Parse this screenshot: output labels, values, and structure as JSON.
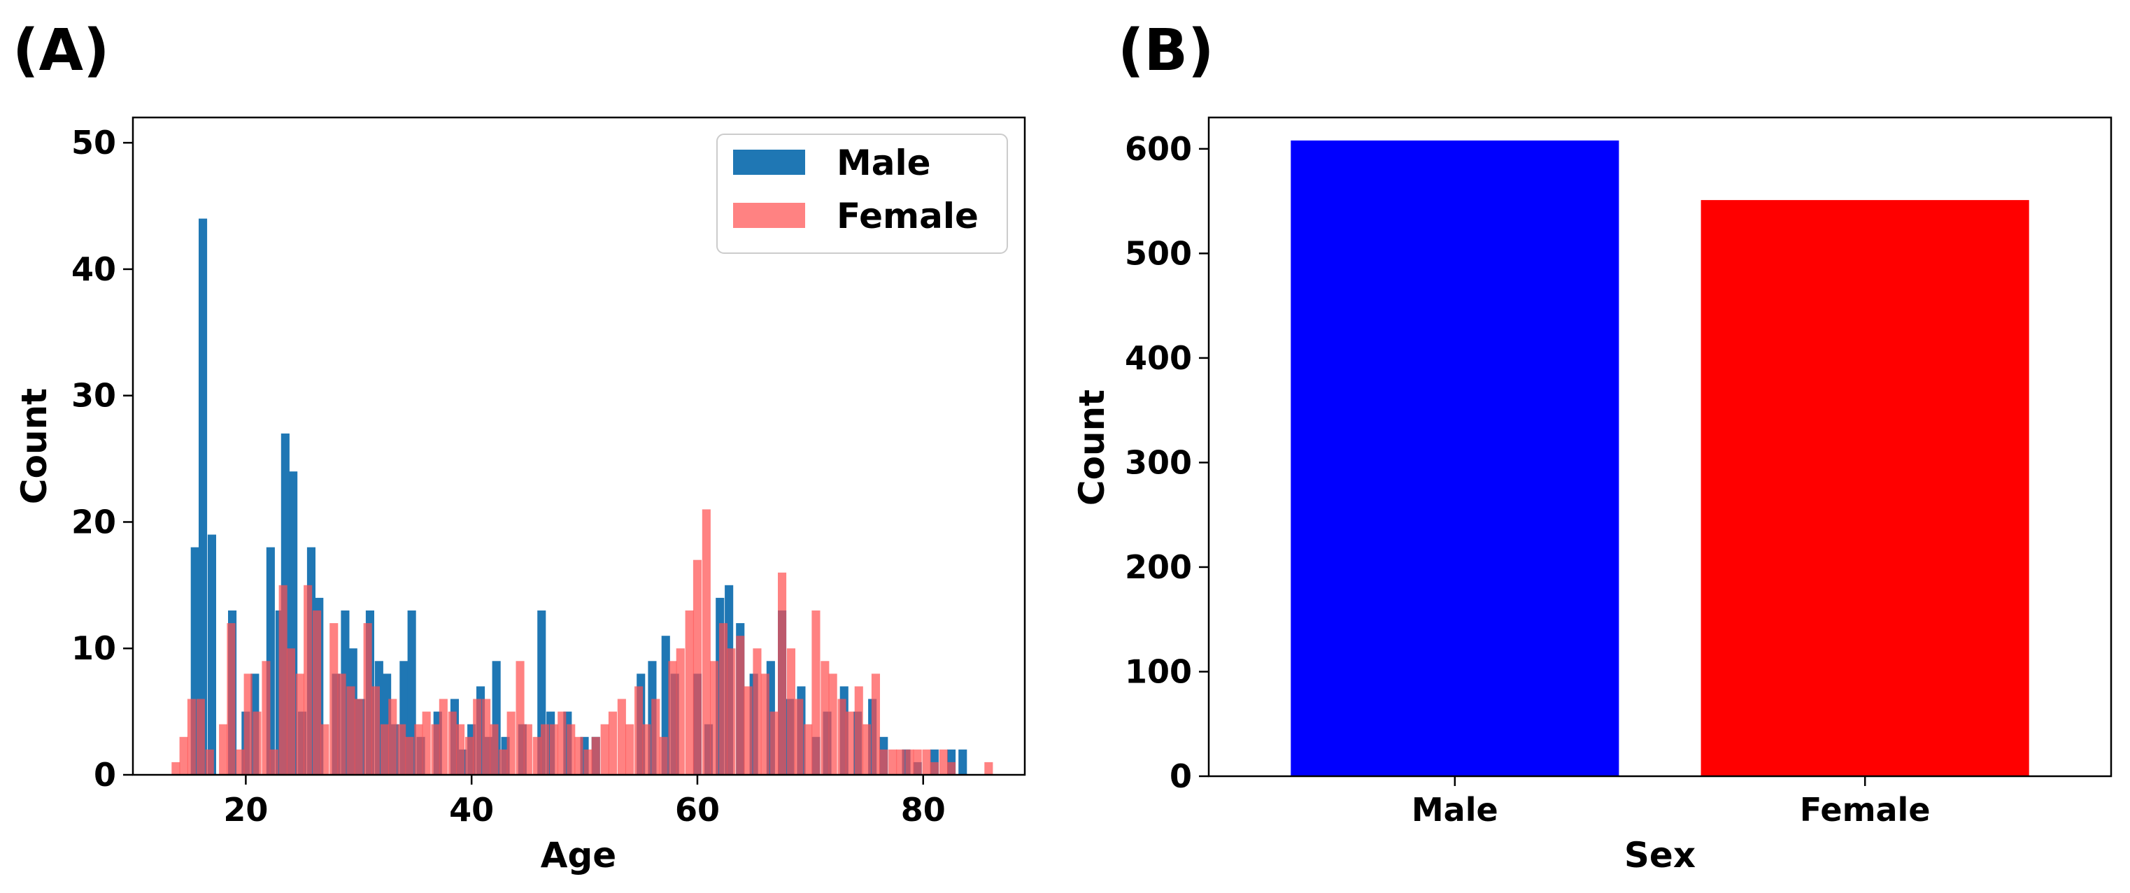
{
  "panels": [
    {
      "label": "(A)",
      "chart_data": {
        "type": "bar",
        "subtype": "overlapping-histogram",
        "title": "",
        "xlabel": "Age",
        "ylabel": "Count",
        "xlim": [
          10,
          89
        ],
        "ylim": [
          0,
          52
        ],
        "xticks": [
          20,
          40,
          60,
          80
        ],
        "yticks": [
          0,
          10,
          20,
          30,
          40,
          50
        ],
        "bin_width": 0.75,
        "legend": {
          "placement": "top-right"
        },
        "series": [
          {
            "name": "Male",
            "color": "#1f77b4",
            "opacity": 1.0,
            "bins": [
              [
                15.5,
                18
              ],
              [
                16.2,
                44
              ],
              [
                17.0,
                19
              ],
              [
                18.8,
                13
              ],
              [
                20.0,
                5
              ],
              [
                20.8,
                8
              ],
              [
                22.2,
                18
              ],
              [
                23.0,
                13
              ],
              [
                23.5,
                27
              ],
              [
                24.2,
                24
              ],
              [
                25.0,
                5
              ],
              [
                25.8,
                18
              ],
              [
                26.5,
                14
              ],
              [
                28.0,
                8
              ],
              [
                28.8,
                13
              ],
              [
                29.5,
                10
              ],
              [
                30.2,
                6
              ],
              [
                31.0,
                13
              ],
              [
                31.8,
                9
              ],
              [
                32.5,
                8
              ],
              [
                33.2,
                4
              ],
              [
                34.0,
                9
              ],
              [
                34.7,
                13
              ],
              [
                35.5,
                3
              ],
              [
                37.0,
                5
              ],
              [
                38.5,
                6
              ],
              [
                39.2,
                2
              ],
              [
                40.0,
                4
              ],
              [
                40.8,
                7
              ],
              [
                41.5,
                3
              ],
              [
                42.2,
                9
              ],
              [
                43.0,
                3
              ],
              [
                44.5,
                4
              ],
              [
                46.2,
                13
              ],
              [
                47.0,
                5
              ],
              [
                48.5,
                5
              ],
              [
                50.0,
                3
              ],
              [
                51.0,
                3
              ],
              [
                55.0,
                8
              ],
              [
                56.0,
                9
              ],
              [
                57.2,
                11
              ],
              [
                58.0,
                8
              ],
              [
                60.0,
                8
              ],
              [
                61.0,
                4
              ],
              [
                62.0,
                14
              ],
              [
                62.8,
                15
              ],
              [
                63.8,
                12
              ],
              [
                65.0,
                8
              ],
              [
                66.5,
                9
              ],
              [
                67.5,
                13
              ],
              [
                68.2,
                6
              ],
              [
                69.2,
                7
              ],
              [
                70.5,
                3
              ],
              [
                71.5,
                5
              ],
              [
                73.0,
                7
              ],
              [
                74.2,
                5
              ],
              [
                75.5,
                6
              ],
              [
                76.5,
                3
              ],
              [
                78.5,
                2
              ],
              [
                79.5,
                1
              ],
              [
                81.0,
                2
              ],
              [
                82.5,
                2
              ],
              [
                83.5,
                2
              ]
            ]
          },
          {
            "name": "Female",
            "color": "#ff4d4d",
            "opacity": 0.7,
            "bins": [
              [
                13.8,
                1
              ],
              [
                14.5,
                3
              ],
              [
                15.2,
                6
              ],
              [
                16.0,
                6
              ],
              [
                16.8,
                2
              ],
              [
                18.0,
                4
              ],
              [
                18.7,
                12
              ],
              [
                19.5,
                2
              ],
              [
                20.2,
                8
              ],
              [
                21.0,
                5
              ],
              [
                21.8,
                9
              ],
              [
                22.5,
                2
              ],
              [
                23.3,
                15
              ],
              [
                24.0,
                10
              ],
              [
                24.8,
                8
              ],
              [
                25.5,
                15
              ],
              [
                26.3,
                13
              ],
              [
                27.0,
                4
              ],
              [
                27.8,
                12
              ],
              [
                28.5,
                8
              ],
              [
                29.3,
                7
              ],
              [
                30.0,
                6
              ],
              [
                30.8,
                12
              ],
              [
                31.5,
                7
              ],
              [
                32.3,
                4
              ],
              [
                33.0,
                6
              ],
              [
                33.8,
                4
              ],
              [
                34.5,
                3
              ],
              [
                35.3,
                4
              ],
              [
                36.0,
                5
              ],
              [
                36.8,
                4
              ],
              [
                37.5,
                6
              ],
              [
                38.3,
                5
              ],
              [
                39.0,
                4
              ],
              [
                39.8,
                3
              ],
              [
                40.5,
                6
              ],
              [
                41.3,
                6
              ],
              [
                42.0,
                4
              ],
              [
                42.8,
                2
              ],
              [
                43.5,
                5
              ],
              [
                44.3,
                9
              ],
              [
                45.0,
                4
              ],
              [
                45.8,
                3
              ],
              [
                46.5,
                4
              ],
              [
                47.3,
                4
              ],
              [
                48.0,
                5
              ],
              [
                48.8,
                4
              ],
              [
                49.5,
                3
              ],
              [
                50.3,
                2
              ],
              [
                51.0,
                3
              ],
              [
                51.8,
                4
              ],
              [
                52.5,
                5
              ],
              [
                53.3,
                6
              ],
              [
                54.0,
                4
              ],
              [
                54.8,
                7
              ],
              [
                55.5,
                4
              ],
              [
                56.3,
                6
              ],
              [
                57.0,
                3
              ],
              [
                57.8,
                9
              ],
              [
                58.5,
                10
              ],
              [
                59.3,
                13
              ],
              [
                60.0,
                17
              ],
              [
                60.8,
                21
              ],
              [
                61.5,
                9
              ],
              [
                62.3,
                12
              ],
              [
                63.0,
                10
              ],
              [
                63.8,
                11
              ],
              [
                64.5,
                7
              ],
              [
                65.3,
                10
              ],
              [
                66.0,
                8
              ],
              [
                66.8,
                5
              ],
              [
                67.5,
                16
              ],
              [
                68.3,
                10
              ],
              [
                69.0,
                6
              ],
              [
                69.8,
                4
              ],
              [
                70.5,
                13
              ],
              [
                71.3,
                9
              ],
              [
                72.0,
                8
              ],
              [
                72.8,
                6
              ],
              [
                73.5,
                5
              ],
              [
                74.3,
                7
              ],
              [
                75.0,
                4
              ],
              [
                75.8,
                8
              ],
              [
                76.5,
                2
              ],
              [
                77.3,
                2
              ],
              [
                78.0,
                2
              ],
              [
                78.8,
                2
              ],
              [
                79.5,
                2
              ],
              [
                80.3,
                2
              ],
              [
                81.0,
                1
              ],
              [
                81.8,
                2
              ],
              [
                82.5,
                1
              ],
              [
                85.8,
                1
              ]
            ]
          }
        ]
      }
    },
    {
      "label": "(B)",
      "chart_data": {
        "type": "bar",
        "title": "",
        "xlabel": "Sex",
        "ylabel": "Count",
        "categories": [
          "Male",
          "Female"
        ],
        "values": [
          608,
          551
        ],
        "colors": [
          "#0000ff",
          "#ff0000"
        ],
        "ylim": [
          0,
          630
        ],
        "yticks": [
          0,
          100,
          200,
          300,
          400,
          500,
          600
        ]
      }
    }
  ]
}
